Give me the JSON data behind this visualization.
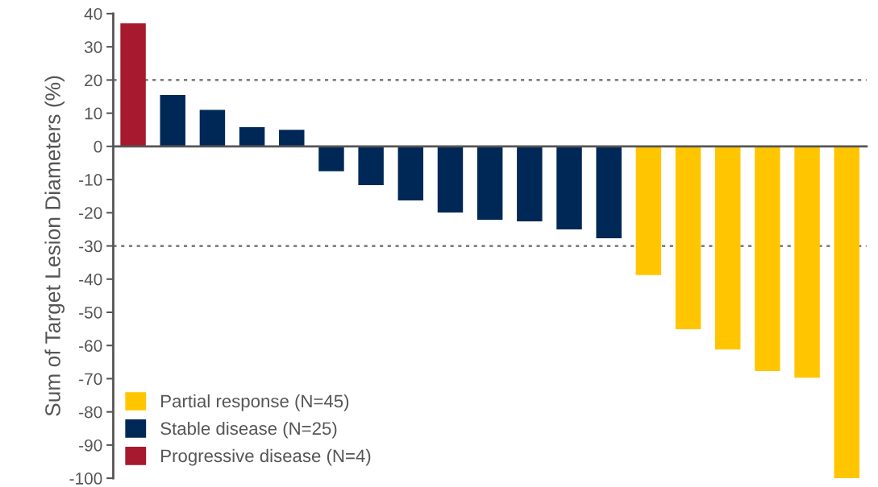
{
  "chart_data": {
    "type": "bar",
    "ylabel": "Sum of Target Lesion Diameters (%)",
    "categories": [
      null,
      null,
      null,
      null,
      null,
      null,
      null,
      null,
      null,
      null,
      null,
      null,
      null,
      null,
      null,
      null,
      null,
      null,
      null
    ],
    "series": [
      {
        "name": "Partial response (N=45)",
        "color": "#ffc600",
        "values": [
          null,
          null,
          null,
          null,
          null,
          null,
          null,
          null,
          null,
          null,
          null,
          null,
          null,
          -38.8,
          -55.1,
          -61.2,
          -67.7,
          -69.7,
          -100
        ]
      },
      {
        "name": "Stable disease (N=25)",
        "color": "#002856",
        "values": [
          null,
          15.5,
          11,
          5.8,
          5,
          -7.5,
          -11.7,
          -16.3,
          -19.9,
          -22.1,
          -22.6,
          -25,
          -27.7,
          null,
          null,
          null,
          null,
          null,
          null
        ]
      },
      {
        "name": "Progressive disease (N=4)",
        "color": "#a6192e",
        "values": [
          37.1,
          null,
          null,
          null,
          null,
          null,
          null,
          null,
          null,
          null,
          null,
          null,
          null,
          null,
          null,
          null,
          null,
          null,
          null
        ]
      }
    ],
    "ylim": [
      -100,
      40
    ],
    "yticks": [
      -100,
      -90,
      -80,
      -70,
      -60,
      -50,
      -40,
      -30,
      -20,
      -10,
      0,
      10,
      20,
      30,
      40
    ],
    "ref_lines": [
      {
        "axis": "y",
        "value": 20,
        "color": "#808080",
        "line_style": "dotted"
      },
      {
        "axis": "y",
        "value": -30,
        "color": "#808080",
        "line_style": "dotted"
      }
    ],
    "grid": false,
    "legend": "bottom left"
  }
}
